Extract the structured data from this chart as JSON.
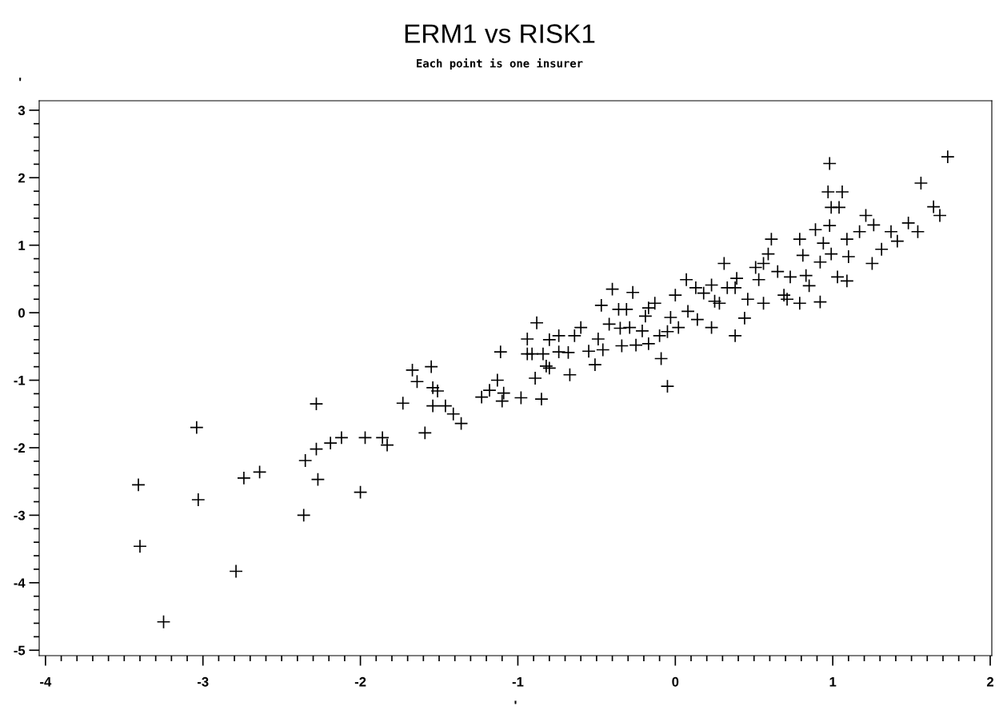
{
  "chart_data": {
    "type": "scatter",
    "title": "ERM1 vs RISK1",
    "subtitle": "Each point is one insurer",
    "xlabel": "'",
    "ylabel": "'",
    "marker": "cross",
    "grid": false,
    "legend": false,
    "xlim": [
      -4.04,
      2.01
    ],
    "ylim": [
      -5.08,
      3.14
    ],
    "xticks": [
      -4,
      -3,
      -2,
      -1,
      0,
      1,
      2
    ],
    "yticks": [
      -5,
      -4,
      -3,
      -2,
      -1,
      0,
      1,
      2,
      3
    ],
    "series": [
      {
        "color": "#000000",
        "x": [
          -3.4,
          -3.25,
          -3.04,
          -3.41,
          -3.03,
          -2.79,
          -2.74,
          -2.64,
          -2.36,
          -2.35,
          -2.28,
          -2.28,
          -2.27,
          -2.19,
          -2.12,
          -2.0,
          -1.97,
          -1.86,
          -1.83,
          -1.73,
          -1.67,
          -1.64,
          -1.55,
          -1.54,
          -1.59,
          -1.54,
          -1.51,
          -1.46,
          -1.41,
          -1.36,
          -1.23,
          -1.18,
          -1.13,
          -1.11,
          -1.1,
          -1.09,
          -0.98,
          -0.94,
          -0.94,
          -0.91,
          -0.89,
          -0.88,
          -0.84,
          -0.85,
          -0.82,
          -0.8,
          -0.74,
          -0.68,
          -0.67,
          -0.64,
          -0.6,
          -0.55,
          -0.49,
          -0.47,
          -0.46,
          -0.42,
          -0.4,
          -0.36,
          -0.35,
          -0.34,
          -0.31,
          -0.27,
          -0.25,
          -0.21,
          -0.19,
          -0.17,
          -0.17,
          -0.1,
          -0.09,
          -0.05,
          -0.05,
          -0.03,
          0.0,
          0.02,
          0.07,
          0.14,
          0.18,
          0.23,
          0.25,
          0.28,
          0.31,
          0.33,
          0.39,
          0.44,
          0.46,
          0.53,
          0.56,
          0.59,
          0.61,
          0.65,
          0.69,
          0.73,
          0.79,
          0.83,
          0.85,
          0.89,
          0.92,
          0.94,
          0.98,
          0.99,
          0.97,
          0.99,
          0.98,
          1.06,
          1.03,
          1.09,
          1.1,
          1.17,
          1.21,
          1.26,
          1.25,
          1.31,
          1.37,
          1.41,
          1.48,
          1.54,
          1.56,
          1.64,
          1.68,
          1.73,
          0.23,
          0.38,
          0.56,
          0.71,
          0.79,
          0.92,
          0.81,
          1.09,
          0.13,
          0.08,
          -0.13,
          -0.29,
          -0.51,
          -0.74,
          -0.8,
          0.38,
          0.51,
          1.04
        ],
        "values": [
          -3.46,
          -4.58,
          -1.7,
          -2.55,
          -2.77,
          -3.83,
          -2.45,
          -2.36,
          -3.0,
          -2.19,
          -2.02,
          -1.35,
          -2.47,
          -1.93,
          -1.85,
          -2.66,
          -1.85,
          -1.85,
          -1.96,
          -1.34,
          -0.85,
          -1.02,
          -0.8,
          -1.11,
          -1.78,
          -1.38,
          -1.16,
          -1.38,
          -1.5,
          -1.64,
          -1.25,
          -1.15,
          -1.0,
          -0.58,
          -1.31,
          -1.19,
          -1.26,
          -0.39,
          -0.61,
          -0.61,
          -0.97,
          -0.15,
          -0.61,
          -1.28,
          -0.79,
          -0.4,
          -0.34,
          -0.59,
          -0.92,
          -0.34,
          -0.22,
          -0.57,
          -0.39,
          0.11,
          -0.55,
          -0.17,
          0.35,
          0.05,
          -0.23,
          -0.49,
          0.05,
          0.3,
          -0.48,
          -0.27,
          -0.05,
          0.07,
          -0.46,
          -0.34,
          -0.68,
          -0.28,
          -1.09,
          -0.07,
          0.26,
          -0.22,
          0.49,
          -0.1,
          0.29,
          0.41,
          0.17,
          0.14,
          0.73,
          0.37,
          0.51,
          -0.08,
          0.2,
          0.49,
          0.73,
          0.87,
          1.09,
          0.61,
          0.26,
          0.53,
          1.09,
          0.55,
          0.4,
          1.23,
          0.75,
          1.03,
          1.29,
          0.87,
          1.79,
          1.56,
          2.21,
          1.79,
          0.53,
          0.47,
          0.83,
          1.2,
          1.44,
          1.3,
          0.73,
          0.94,
          1.2,
          1.06,
          1.33,
          1.2,
          1.92,
          1.57,
          1.44,
          2.31,
          -0.22,
          -0.34,
          0.14,
          0.2,
          0.14,
          0.16,
          0.85,
          1.09,
          0.37,
          0.02,
          0.14,
          -0.22,
          -0.77,
          -0.58,
          -0.82,
          0.37,
          0.67,
          1.56
        ]
      }
    ]
  }
}
